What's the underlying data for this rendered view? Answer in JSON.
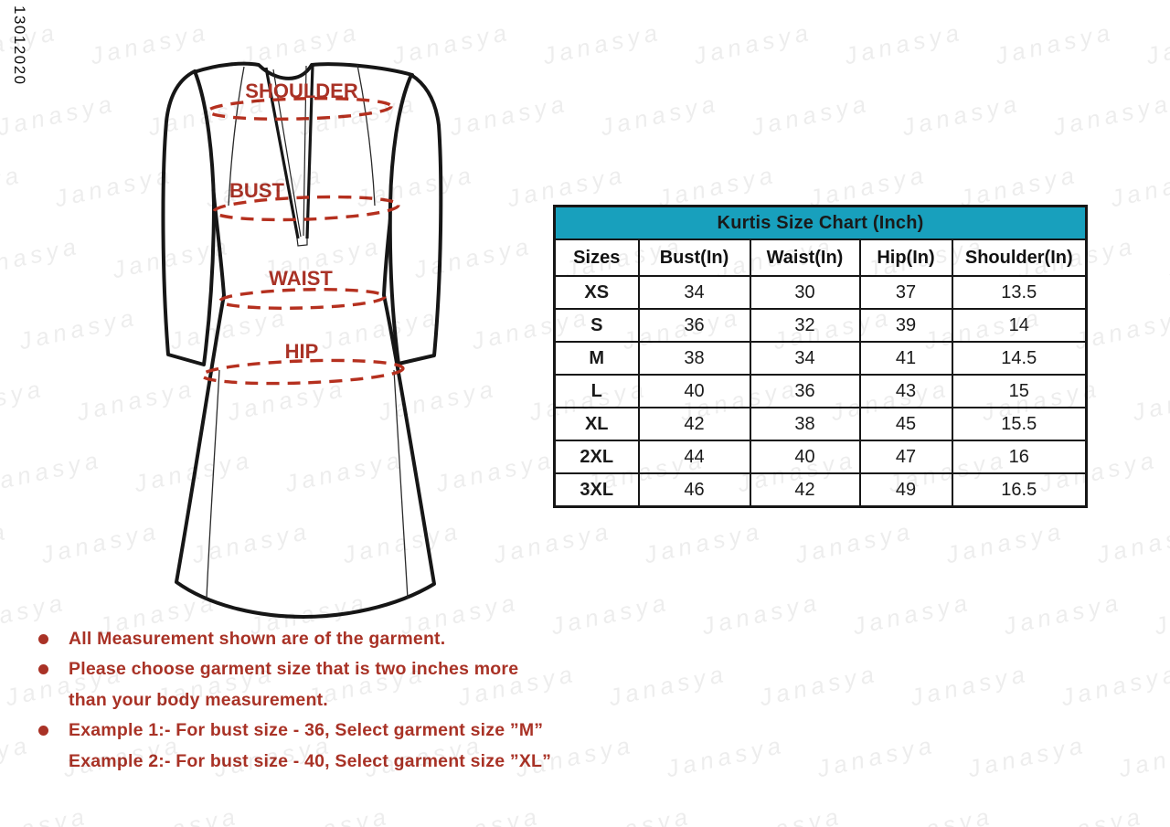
{
  "meta": {
    "vertical_code": "13012020"
  },
  "watermark": {
    "text": "Janasya"
  },
  "diagram": {
    "labels": {
      "shoulder": "SHOULDER",
      "bust": "BUST",
      "waist": "WAIST",
      "hip": "HIP"
    }
  },
  "chart_data": {
    "type": "table",
    "title": "Kurtis Size Chart (Inch)",
    "columns": [
      "Sizes",
      "Bust(In)",
      "Waist(In)",
      "Hip(In)",
      "Shoulder(In)"
    ],
    "rows": [
      [
        "XS",
        "34",
        "30",
        "37",
        "13.5"
      ],
      [
        "S",
        "36",
        "32",
        "39",
        "14"
      ],
      [
        "M",
        "38",
        "34",
        "41",
        "14.5"
      ],
      [
        "L",
        "40",
        "36",
        "43",
        "15"
      ],
      [
        "XL",
        "42",
        "38",
        "45",
        "15.5"
      ],
      [
        "2XL",
        "44",
        "40",
        "47",
        "16"
      ],
      [
        "3XL",
        "46",
        "42",
        "49",
        "16.5"
      ]
    ]
  },
  "notes": {
    "items": [
      {
        "bullet": true,
        "lines": [
          "All Measurement shown are of the garment."
        ]
      },
      {
        "bullet": true,
        "lines": [
          "Please choose garment size that is two inches more",
          "than your body measurement."
        ]
      },
      {
        "bullet": true,
        "lines": [
          "Example 1:- For bust size - 36, Select garment size ”M”"
        ]
      },
      {
        "bullet": false,
        "lines": [
          "Example 2:- For bust size - 40, Select garment size  ”XL”"
        ]
      }
    ]
  },
  "colors": {
    "teal_header": "#18a0bd",
    "red_accent": "#a93226",
    "dash_red": "#b5301f",
    "line_black": "#161616"
  }
}
